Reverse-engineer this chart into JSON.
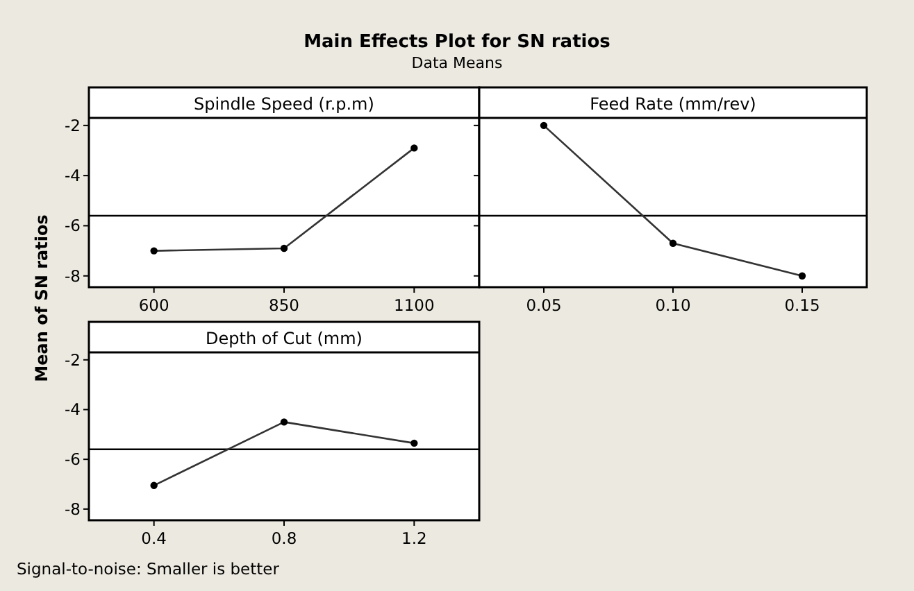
{
  "chart_data": [
    {
      "type": "line",
      "title": "Spindle Speed (r.p.m)",
      "categories": [
        "600",
        "850",
        "1100"
      ],
      "series": [
        {
          "color": "#333333",
          "values": [
            -7.0,
            -6.9,
            -2.9
          ]
        }
      ],
      "ylim": [
        -8.45,
        -1.7
      ],
      "yticks": [
        -2,
        -4,
        -6,
        -8
      ],
      "ylabel": "Mean of SN ratios",
      "ref_lines": [
        {
          "axis": "y",
          "value": -5.6,
          "color": "#000000"
        }
      ],
      "marker": "circle",
      "line_style": "solid",
      "grid": false
    },
    {
      "type": "line",
      "title": "Feed Rate (mm/rev)",
      "categories": [
        "0.05",
        "0.10",
        "0.15"
      ],
      "series": [
        {
          "color": "#333333",
          "values": [
            -2.0,
            -6.7,
            -8.0
          ]
        }
      ],
      "ylim": [
        -8.45,
        -1.7
      ],
      "yticks": [
        -2,
        -4,
        -6,
        -8
      ],
      "tick_labels": "x",
      "ref_lines": [
        {
          "axis": "y",
          "value": -5.6,
          "color": "#000000"
        }
      ],
      "marker": "circle",
      "line_style": "solid",
      "grid": false
    },
    {
      "type": "line",
      "title": "Depth of Cut (mm)",
      "categories": [
        "0.4",
        "0.8",
        "1.2"
      ],
      "series": [
        {
          "color": "#333333",
          "values": [
            -7.05,
            -4.5,
            -5.35
          ]
        }
      ],
      "ylim": [
        -8.45,
        -1.7
      ],
      "yticks": [
        -2,
        -4,
        -6,
        -8
      ],
      "ref_lines": [
        {
          "axis": "y",
          "value": -5.6,
          "color": "#000000"
        }
      ],
      "marker": "circle",
      "line_style": "solid",
      "grid": false,
      "annotations": [
        "Main Effects Plot for SN ratios",
        "Data Means",
        "Signal-to-noise: Smaller is better"
      ]
    }
  ]
}
